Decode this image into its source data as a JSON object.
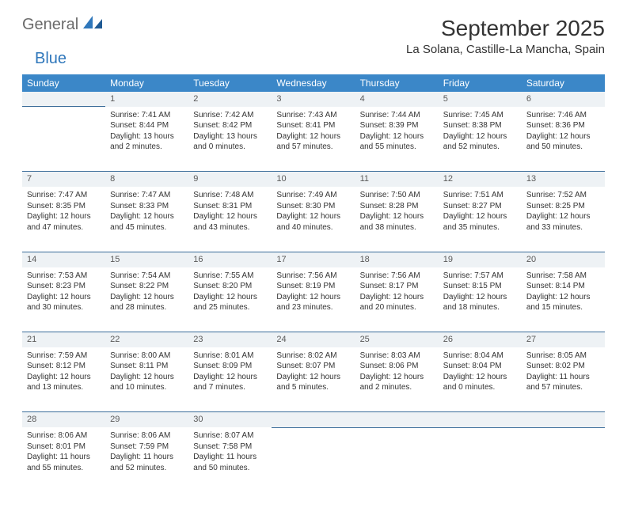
{
  "brand": {
    "part1": "General",
    "part2": "Blue"
  },
  "title": "September 2025",
  "location": "La Solana, Castille-La Mancha, Spain",
  "colors": {
    "header_bg": "#3b87c8",
    "header_text": "#ffffff",
    "daynum_bg": "#eef2f5",
    "cell_border": "#3b6d9a",
    "logo_gray": "#6a6a6a",
    "logo_blue": "#2f77bb",
    "body_text": "#333333",
    "page_bg": "#ffffff"
  },
  "typography": {
    "title_fontsize": 28,
    "location_fontsize": 15,
    "header_fontsize": 12,
    "daynum_fontsize": 11,
    "cell_fontsize": 10
  },
  "weekdays": [
    "Sunday",
    "Monday",
    "Tuesday",
    "Wednesday",
    "Thursday",
    "Friday",
    "Saturday"
  ],
  "weeks": [
    {
      "nums": [
        "",
        "1",
        "2",
        "3",
        "4",
        "5",
        "6"
      ],
      "cells": [
        null,
        {
          "sunrise": "Sunrise: 7:41 AM",
          "sunset": "Sunset: 8:44 PM",
          "day1": "Daylight: 13 hours",
          "day2": "and 2 minutes."
        },
        {
          "sunrise": "Sunrise: 7:42 AM",
          "sunset": "Sunset: 8:42 PM",
          "day1": "Daylight: 13 hours",
          "day2": "and 0 minutes."
        },
        {
          "sunrise": "Sunrise: 7:43 AM",
          "sunset": "Sunset: 8:41 PM",
          "day1": "Daylight: 12 hours",
          "day2": "and 57 minutes."
        },
        {
          "sunrise": "Sunrise: 7:44 AM",
          "sunset": "Sunset: 8:39 PM",
          "day1": "Daylight: 12 hours",
          "day2": "and 55 minutes."
        },
        {
          "sunrise": "Sunrise: 7:45 AM",
          "sunset": "Sunset: 8:38 PM",
          "day1": "Daylight: 12 hours",
          "day2": "and 52 minutes."
        },
        {
          "sunrise": "Sunrise: 7:46 AM",
          "sunset": "Sunset: 8:36 PM",
          "day1": "Daylight: 12 hours",
          "day2": "and 50 minutes."
        }
      ]
    },
    {
      "nums": [
        "7",
        "8",
        "9",
        "10",
        "11",
        "12",
        "13"
      ],
      "cells": [
        {
          "sunrise": "Sunrise: 7:47 AM",
          "sunset": "Sunset: 8:35 PM",
          "day1": "Daylight: 12 hours",
          "day2": "and 47 minutes."
        },
        {
          "sunrise": "Sunrise: 7:47 AM",
          "sunset": "Sunset: 8:33 PM",
          "day1": "Daylight: 12 hours",
          "day2": "and 45 minutes."
        },
        {
          "sunrise": "Sunrise: 7:48 AM",
          "sunset": "Sunset: 8:31 PM",
          "day1": "Daylight: 12 hours",
          "day2": "and 43 minutes."
        },
        {
          "sunrise": "Sunrise: 7:49 AM",
          "sunset": "Sunset: 8:30 PM",
          "day1": "Daylight: 12 hours",
          "day2": "and 40 minutes."
        },
        {
          "sunrise": "Sunrise: 7:50 AM",
          "sunset": "Sunset: 8:28 PM",
          "day1": "Daylight: 12 hours",
          "day2": "and 38 minutes."
        },
        {
          "sunrise": "Sunrise: 7:51 AM",
          "sunset": "Sunset: 8:27 PM",
          "day1": "Daylight: 12 hours",
          "day2": "and 35 minutes."
        },
        {
          "sunrise": "Sunrise: 7:52 AM",
          "sunset": "Sunset: 8:25 PM",
          "day1": "Daylight: 12 hours",
          "day2": "and 33 minutes."
        }
      ]
    },
    {
      "nums": [
        "14",
        "15",
        "16",
        "17",
        "18",
        "19",
        "20"
      ],
      "cells": [
        {
          "sunrise": "Sunrise: 7:53 AM",
          "sunset": "Sunset: 8:23 PM",
          "day1": "Daylight: 12 hours",
          "day2": "and 30 minutes."
        },
        {
          "sunrise": "Sunrise: 7:54 AM",
          "sunset": "Sunset: 8:22 PM",
          "day1": "Daylight: 12 hours",
          "day2": "and 28 minutes."
        },
        {
          "sunrise": "Sunrise: 7:55 AM",
          "sunset": "Sunset: 8:20 PM",
          "day1": "Daylight: 12 hours",
          "day2": "and 25 minutes."
        },
        {
          "sunrise": "Sunrise: 7:56 AM",
          "sunset": "Sunset: 8:19 PM",
          "day1": "Daylight: 12 hours",
          "day2": "and 23 minutes."
        },
        {
          "sunrise": "Sunrise: 7:56 AM",
          "sunset": "Sunset: 8:17 PM",
          "day1": "Daylight: 12 hours",
          "day2": "and 20 minutes."
        },
        {
          "sunrise": "Sunrise: 7:57 AM",
          "sunset": "Sunset: 8:15 PM",
          "day1": "Daylight: 12 hours",
          "day2": "and 18 minutes."
        },
        {
          "sunrise": "Sunrise: 7:58 AM",
          "sunset": "Sunset: 8:14 PM",
          "day1": "Daylight: 12 hours",
          "day2": "and 15 minutes."
        }
      ]
    },
    {
      "nums": [
        "21",
        "22",
        "23",
        "24",
        "25",
        "26",
        "27"
      ],
      "cells": [
        {
          "sunrise": "Sunrise: 7:59 AM",
          "sunset": "Sunset: 8:12 PM",
          "day1": "Daylight: 12 hours",
          "day2": "and 13 minutes."
        },
        {
          "sunrise": "Sunrise: 8:00 AM",
          "sunset": "Sunset: 8:11 PM",
          "day1": "Daylight: 12 hours",
          "day2": "and 10 minutes."
        },
        {
          "sunrise": "Sunrise: 8:01 AM",
          "sunset": "Sunset: 8:09 PM",
          "day1": "Daylight: 12 hours",
          "day2": "and 7 minutes."
        },
        {
          "sunrise": "Sunrise: 8:02 AM",
          "sunset": "Sunset: 8:07 PM",
          "day1": "Daylight: 12 hours",
          "day2": "and 5 minutes."
        },
        {
          "sunrise": "Sunrise: 8:03 AM",
          "sunset": "Sunset: 8:06 PM",
          "day1": "Daylight: 12 hours",
          "day2": "and 2 minutes."
        },
        {
          "sunrise": "Sunrise: 8:04 AM",
          "sunset": "Sunset: 8:04 PM",
          "day1": "Daylight: 12 hours",
          "day2": "and 0 minutes."
        },
        {
          "sunrise": "Sunrise: 8:05 AM",
          "sunset": "Sunset: 8:02 PM",
          "day1": "Daylight: 11 hours",
          "day2": "and 57 minutes."
        }
      ]
    },
    {
      "nums": [
        "28",
        "29",
        "30",
        "",
        "",
        "",
        ""
      ],
      "cells": [
        {
          "sunrise": "Sunrise: 8:06 AM",
          "sunset": "Sunset: 8:01 PM",
          "day1": "Daylight: 11 hours",
          "day2": "and 55 minutes."
        },
        {
          "sunrise": "Sunrise: 8:06 AM",
          "sunset": "Sunset: 7:59 PM",
          "day1": "Daylight: 11 hours",
          "day2": "and 52 minutes."
        },
        {
          "sunrise": "Sunrise: 8:07 AM",
          "sunset": "Sunset: 7:58 PM",
          "day1": "Daylight: 11 hours",
          "day2": "and 50 minutes."
        },
        null,
        null,
        null,
        null
      ]
    }
  ]
}
